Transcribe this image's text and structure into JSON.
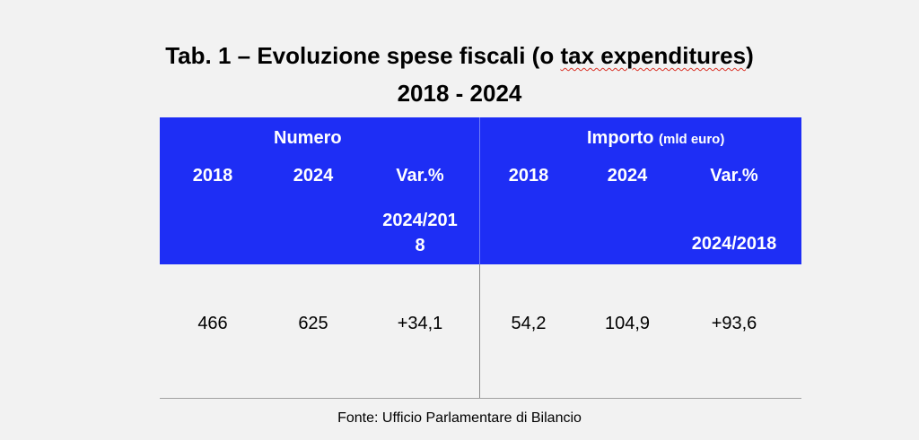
{
  "title": {
    "line1_before": "Tab. 1 – Evoluzione spese fiscali (o ",
    "line1_flagged": "tax expenditures",
    "line1_after": ")",
    "line2": "2018 - 2024"
  },
  "table": {
    "groups": {
      "numero": "Numero",
      "importo": "Importo",
      "importo_unit": "(mld euro)"
    },
    "columns": {
      "n_2018": "2018",
      "n_2024": "2024",
      "n_var": "Var.%",
      "n_var_period_line1": "2024/201",
      "n_var_period_line2": "8",
      "i_2018": "2018",
      "i_2024": "2024",
      "i_var": "Var.%",
      "i_var_period": "2024/2018"
    },
    "values": {
      "numero_2018": "466",
      "numero_2024": "625",
      "numero_var": "+34,1",
      "importo_2018": "54,2",
      "importo_2024": "104,9",
      "importo_var": "+93,6"
    }
  },
  "source": "Fonte: Ufficio Parlamentare di Bilancio",
  "colors": {
    "header_bg": "#1e2ef5",
    "spellcheck_underline": "#d93025"
  }
}
